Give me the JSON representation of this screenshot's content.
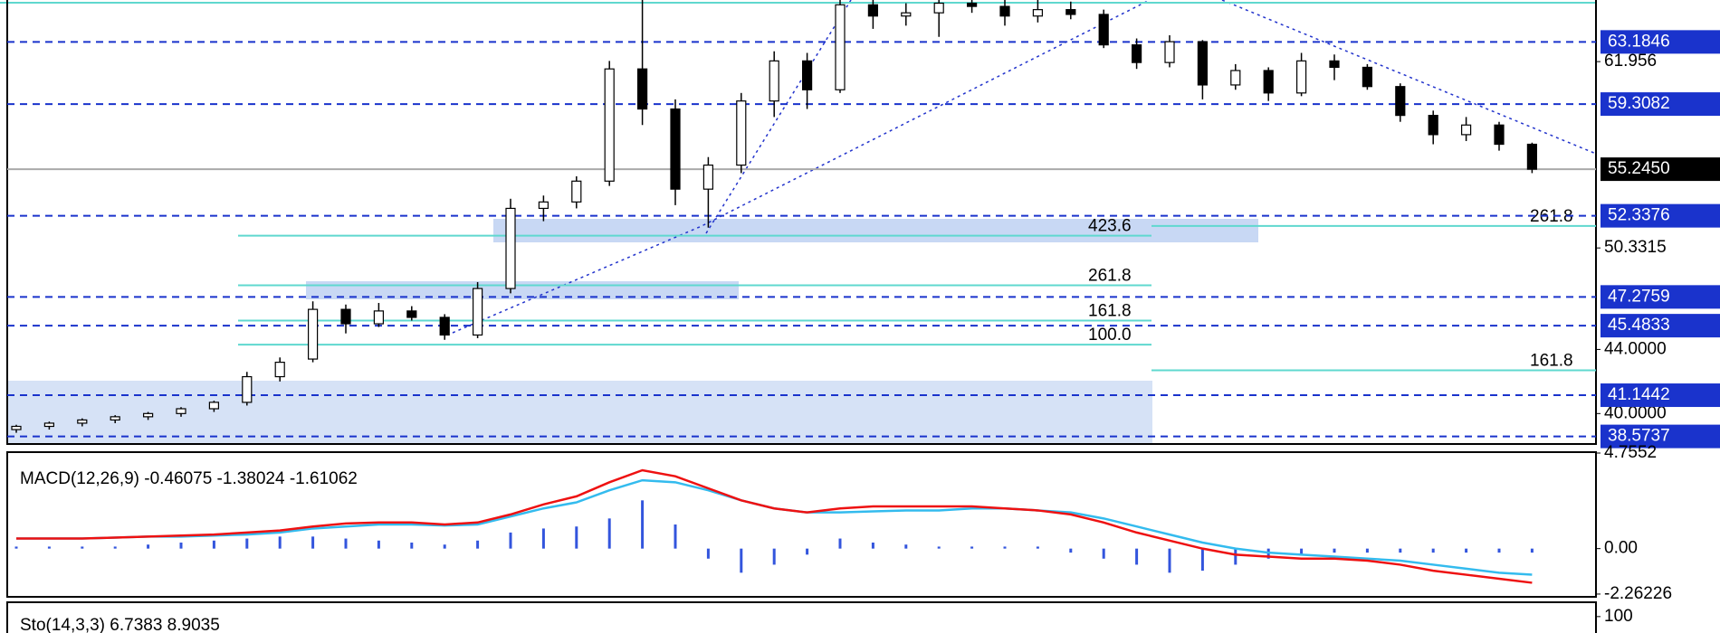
{
  "chart_data": [
    {
      "type": "candlestick",
      "ylim": [
        38.1,
        65.8
      ],
      "yticks": [
        61.956,
        50.3315,
        {
          "value": 44,
          "label": "44.0000"
        },
        {
          "value": 40,
          "label": "40.0000"
        }
      ],
      "levels": [
        63.1846,
        59.3082,
        52.3376,
        47.2759,
        45.4833,
        41.1442,
        38.5737
      ],
      "price_line": {
        "value": 55.245,
        "label": "55.2450"
      },
      "level_color": "#1a33cc",
      "up_color": "#ffffff",
      "down_color": "#000000",
      "annotations": [
        {
          "text": "423.6",
          "y": 51.1,
          "side": "left"
        },
        {
          "text": "261.8",
          "y": 48.0,
          "side": "left"
        },
        {
          "text": "161.8",
          "y": 45.8,
          "side": "left"
        },
        {
          "text": "100.0",
          "y": 44.3,
          "side": "left"
        },
        {
          "text": "261.8",
          "y": 51.7,
          "side": "right"
        },
        {
          "text": "161.8",
          "y": 42.7,
          "side": "right"
        }
      ],
      "annotation_color": "#5fd8cf",
      "candles": [
        [
          39.0,
          39.3,
          38.8,
          39.2
        ],
        [
          39.2,
          39.5,
          39.0,
          39.4
        ],
        [
          39.4,
          39.7,
          39.2,
          39.6
        ],
        [
          39.6,
          39.9,
          39.4,
          39.8
        ],
        [
          39.8,
          40.1,
          39.6,
          40.0
        ],
        [
          40.0,
          40.4,
          39.8,
          40.3
        ],
        [
          40.3,
          40.8,
          40.1,
          40.7
        ],
        [
          40.7,
          42.6,
          40.5,
          42.3
        ],
        [
          42.3,
          43.5,
          42.0,
          43.2
        ],
        [
          43.4,
          47.0,
          43.2,
          46.5
        ],
        [
          46.5,
          46.8,
          45.0,
          45.6
        ],
        [
          45.6,
          46.9,
          45.4,
          46.4
        ],
        [
          46.4,
          46.7,
          45.8,
          46.0
        ],
        [
          46.0,
          46.2,
          44.6,
          44.9
        ],
        [
          44.9,
          48.2,
          44.7,
          47.8
        ],
        [
          47.8,
          53.4,
          47.5,
          52.8
        ],
        [
          52.8,
          53.6,
          52.0,
          53.2
        ],
        [
          53.2,
          54.8,
          52.8,
          54.5
        ],
        [
          54.5,
          62.0,
          54.2,
          61.5
        ],
        [
          61.5,
          66.0,
          58.0,
          59.0
        ],
        [
          59.0,
          59.6,
          53.0,
          54.0
        ],
        [
          54.0,
          56.0,
          51.6,
          55.5
        ],
        [
          55.5,
          60.0,
          55.0,
          59.5
        ],
        [
          59.5,
          62.6,
          58.5,
          62.0
        ],
        [
          62.0,
          62.5,
          59.0,
          60.2
        ],
        [
          60.2,
          66.0,
          60.0,
          65.5
        ],
        [
          65.5,
          66.0,
          64.0,
          64.8
        ],
        [
          64.8,
          65.6,
          64.2,
          65.0
        ],
        [
          65.0,
          66.0,
          63.5,
          65.6
        ],
        [
          65.6,
          66.0,
          65.0,
          65.4
        ],
        [
          65.4,
          66.0,
          64.2,
          64.8
        ],
        [
          64.8,
          65.8,
          64.4,
          65.2
        ],
        [
          65.2,
          65.7,
          64.6,
          64.9
        ],
        [
          64.9,
          65.2,
          62.8,
          63.0
        ],
        [
          63.0,
          63.4,
          61.5,
          61.9
        ],
        [
          61.9,
          63.6,
          61.6,
          63.2
        ],
        [
          63.2,
          63.3,
          59.6,
          60.5
        ],
        [
          60.5,
          61.8,
          60.2,
          61.4
        ],
        [
          61.4,
          61.6,
          59.5,
          60.0
        ],
        [
          60.0,
          62.5,
          59.8,
          62.0
        ],
        [
          62.0,
          62.4,
          60.8,
          61.6
        ],
        [
          61.6,
          61.8,
          60.2,
          60.4
        ],
        [
          60.4,
          60.6,
          58.2,
          58.6
        ],
        [
          58.6,
          58.9,
          56.8,
          57.4
        ],
        [
          57.4,
          58.5,
          57.0,
          58.0
        ],
        [
          58.0,
          58.2,
          56.4,
          56.8
        ],
        [
          56.8,
          56.9,
          55.0,
          55.245
        ]
      ]
    },
    {
      "type": "macd",
      "title": "MACD(12,26,9) -0.46075 -1.38024 -1.61062",
      "ylim": [
        -2.4,
        4.8
      ],
      "yticks": [
        4.7552,
        {
          "value": 0,
          "label": "0.00"
        },
        -2.26226
      ],
      "series": [
        {
          "color": "#33bbee",
          "values": [
            0.5,
            0.5,
            0.5,
            0.55,
            0.6,
            0.6,
            0.65,
            0.7,
            0.8,
            1.0,
            1.1,
            1.2,
            1.2,
            1.15,
            1.2,
            1.6,
            2.0,
            2.3,
            2.9,
            3.4,
            3.3,
            2.9,
            2.4,
            2.0,
            1.8,
            1.8,
            1.85,
            1.9,
            1.9,
            2.0,
            2.0,
            1.9,
            1.8,
            1.5,
            1.1,
            0.7,
            0.3,
            0.0,
            -0.2,
            -0.3,
            -0.4,
            -0.5,
            -0.6,
            -0.8,
            -1.0,
            -1.2,
            -1.3
          ]
        },
        {
          "color": "#ee1111",
          "values": [
            0.5,
            0.5,
            0.5,
            0.55,
            0.6,
            0.65,
            0.7,
            0.8,
            0.9,
            1.1,
            1.25,
            1.3,
            1.3,
            1.2,
            1.3,
            1.7,
            2.2,
            2.6,
            3.3,
            3.9,
            3.6,
            3.0,
            2.4,
            2.0,
            1.8,
            2.0,
            2.1,
            2.1,
            2.1,
            2.1,
            2.0,
            1.9,
            1.7,
            1.3,
            0.8,
            0.4,
            0.0,
            -0.3,
            -0.4,
            -0.5,
            -0.5,
            -0.6,
            -0.8,
            -1.1,
            -1.3,
            -1.5,
            -1.7
          ]
        }
      ],
      "histogram": {
        "color": "#3355dd",
        "values": [
          0.1,
          0.1,
          0.1,
          0.1,
          0.2,
          0.3,
          0.4,
          0.5,
          0.6,
          0.6,
          0.5,
          0.4,
          0.3,
          0.2,
          0.4,
          0.8,
          1.0,
          1.1,
          1.5,
          2.4,
          1.2,
          -0.5,
          -1.2,
          -0.8,
          -0.3,
          0.5,
          0.3,
          0.2,
          0.1,
          0.1,
          0.1,
          0.1,
          -0.2,
          -0.5,
          -0.8,
          -1.2,
          -1.1,
          -0.8,
          -0.5,
          -0.3,
          -0.2,
          -0.2,
          -0.2,
          -0.2,
          -0.2,
          -0.2,
          -0.2
        ]
      }
    },
    {
      "type": "stochastic",
      "title": "Sto(14,3,3) 6.7383 8.9035",
      "ylim": [
        0,
        108
      ],
      "yticks": [
        100
      ]
    }
  ]
}
